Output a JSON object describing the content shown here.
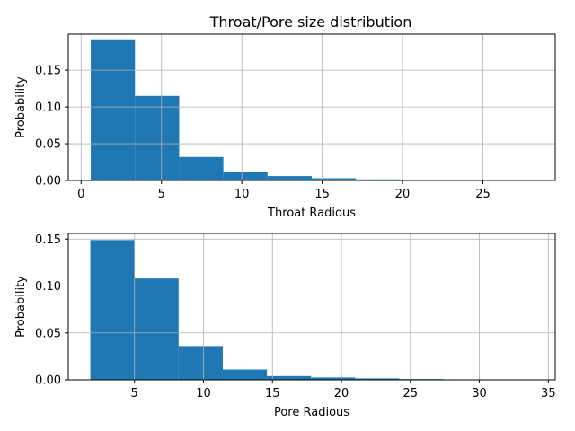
{
  "figure": {
    "title": "Throat/Pore size distribution"
  },
  "chart_data": [
    {
      "type": "bar",
      "title": "Throat/Pore size distribution",
      "xlabel": "Throat Radious",
      "ylabel": "Probability",
      "xlim": [
        -0.8,
        29.5
      ],
      "ylim": [
        0,
        0.199
      ],
      "xticks": [
        0,
        5,
        10,
        15,
        20,
        25
      ],
      "yticks": [
        0.0,
        0.05,
        0.1,
        0.15
      ],
      "ytick_labels": [
        "0.00",
        "0.05",
        "0.10",
        "0.15"
      ],
      "grid": true,
      "color": "#1f77b4",
      "bins": [
        {
          "x0": 0.6,
          "x1": 3.35,
          "value": 0.192
        },
        {
          "x0": 3.35,
          "x1": 6.1,
          "value": 0.115
        },
        {
          "x0": 6.1,
          "x1": 8.85,
          "value": 0.032
        },
        {
          "x0": 8.85,
          "x1": 11.6,
          "value": 0.012
        },
        {
          "x0": 11.6,
          "x1": 14.35,
          "value": 0.006
        },
        {
          "x0": 14.35,
          "x1": 17.1,
          "value": 0.003
        },
        {
          "x0": 17.1,
          "x1": 19.85,
          "value": 0.0015
        },
        {
          "x0": 19.85,
          "x1": 22.6,
          "value": 0.001
        },
        {
          "x0": 22.6,
          "x1": 25.35,
          "value": 0.0002
        },
        {
          "x0": 25.35,
          "x1": 28.1,
          "value": 0.0001
        }
      ]
    },
    {
      "type": "bar",
      "title": "",
      "xlabel": "Pore Radious",
      "ylabel": "Probability",
      "xlim": [
        0.2,
        35.5
      ],
      "ylim": [
        0,
        0.156
      ],
      "xticks": [
        5,
        10,
        15,
        20,
        25,
        30,
        35
      ],
      "yticks": [
        0.0,
        0.05,
        0.1,
        0.15
      ],
      "ytick_labels": [
        "0.00",
        "0.05",
        "0.10",
        "0.15"
      ],
      "grid": true,
      "color": "#1f77b4",
      "bins": [
        {
          "x0": 1.8,
          "x1": 5.0,
          "value": 0.149
        },
        {
          "x0": 5.0,
          "x1": 8.2,
          "value": 0.108
        },
        {
          "x0": 8.2,
          "x1": 11.4,
          "value": 0.036
        },
        {
          "x0": 11.4,
          "x1": 14.6,
          "value": 0.011
        },
        {
          "x0": 14.6,
          "x1": 17.8,
          "value": 0.004
        },
        {
          "x0": 17.8,
          "x1": 21.0,
          "value": 0.0025
        },
        {
          "x0": 21.0,
          "x1": 24.2,
          "value": 0.0015
        },
        {
          "x0": 24.2,
          "x1": 27.4,
          "value": 0.0008
        },
        {
          "x0": 27.4,
          "x1": 30.6,
          "value": 0.0002
        },
        {
          "x0": 30.6,
          "x1": 33.8,
          "value": 0.0001
        }
      ]
    }
  ]
}
